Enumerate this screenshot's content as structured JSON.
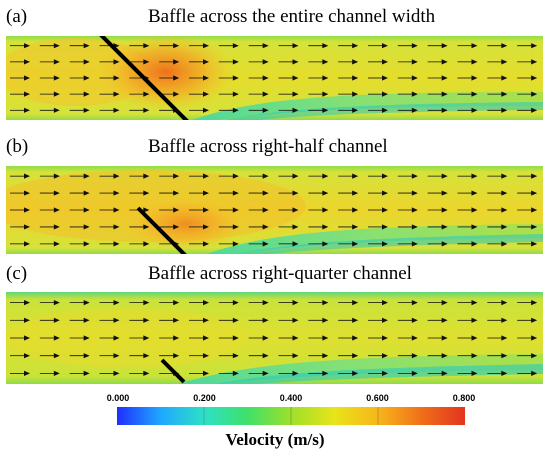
{
  "panels": [
    {
      "label": "(a)",
      "title": "Baffle across the entire channel width"
    },
    {
      "label": "(b)",
      "title": "Baffle across right-half channel"
    },
    {
      "label": "(c)",
      "title": "Baffle across right-quarter channel"
    }
  ],
  "colorbar": {
    "ticks": [
      "0.000",
      "0.200",
      "0.400",
      "0.600",
      "0.800"
    ],
    "title": "Velocity (m/s)",
    "colors": [
      "#1f2fff",
      "#1fa8ff",
      "#2de0c6",
      "#3fe06a",
      "#9ee02a",
      "#e8e41a",
      "#f7b61a",
      "#f06f1a",
      "#e3341f"
    ]
  }
}
